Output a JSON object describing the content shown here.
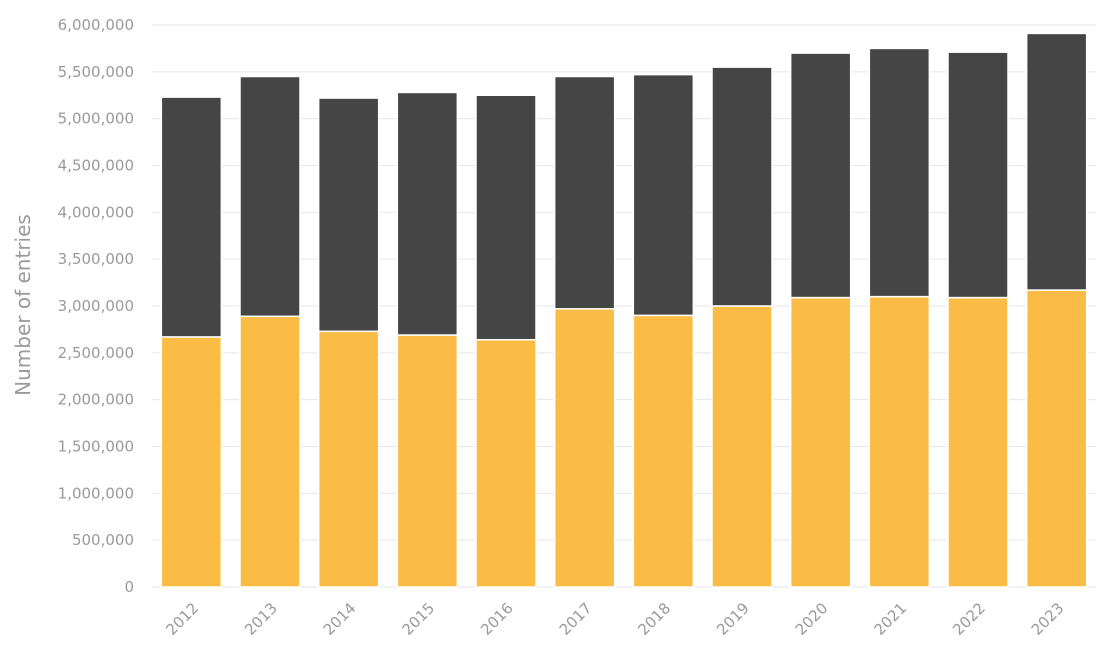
{
  "chart_data": {
    "type": "bar",
    "stacked": true,
    "title": "",
    "xlabel": "",
    "ylabel": "Number of entries",
    "ylim": [
      0,
      6000000
    ],
    "yticks": [
      0,
      500000,
      1000000,
      1500000,
      2000000,
      2500000,
      3000000,
      3500000,
      4000000,
      4500000,
      5000000,
      5500000,
      6000000
    ],
    "ytick_labels": [
      "0",
      "500,000",
      "1,000,000",
      "1,500,000",
      "2,000,000",
      "2,500,000",
      "3,000,000",
      "3,500,000",
      "4,000,000",
      "4,500,000",
      "5,000,000",
      "5,500,000",
      "6,000,000"
    ],
    "grid": true,
    "legend": "none",
    "categories": [
      "2012",
      "2013",
      "2014",
      "2015",
      "2016",
      "2017",
      "2018",
      "2019",
      "2020",
      "2021",
      "2022",
      "2023"
    ],
    "series": [
      {
        "color": "#fbbc45",
        "values": [
          2670000,
          2890000,
          2730000,
          2690000,
          2640000,
          2970000,
          2900000,
          3000000,
          3090000,
          3100000,
          3090000,
          3170000
        ]
      },
      {
        "color": "#464545",
        "values": [
          2560000,
          2560000,
          2490000,
          2590000,
          2610000,
          2480000,
          2570000,
          2550000,
          2610000,
          2650000,
          2620000,
          2740000
        ]
      }
    ],
    "colors": {
      "grid": "#e6e6e6",
      "axis_text": "#9a9a9a",
      "bar_outline": "#ffffff"
    }
  }
}
